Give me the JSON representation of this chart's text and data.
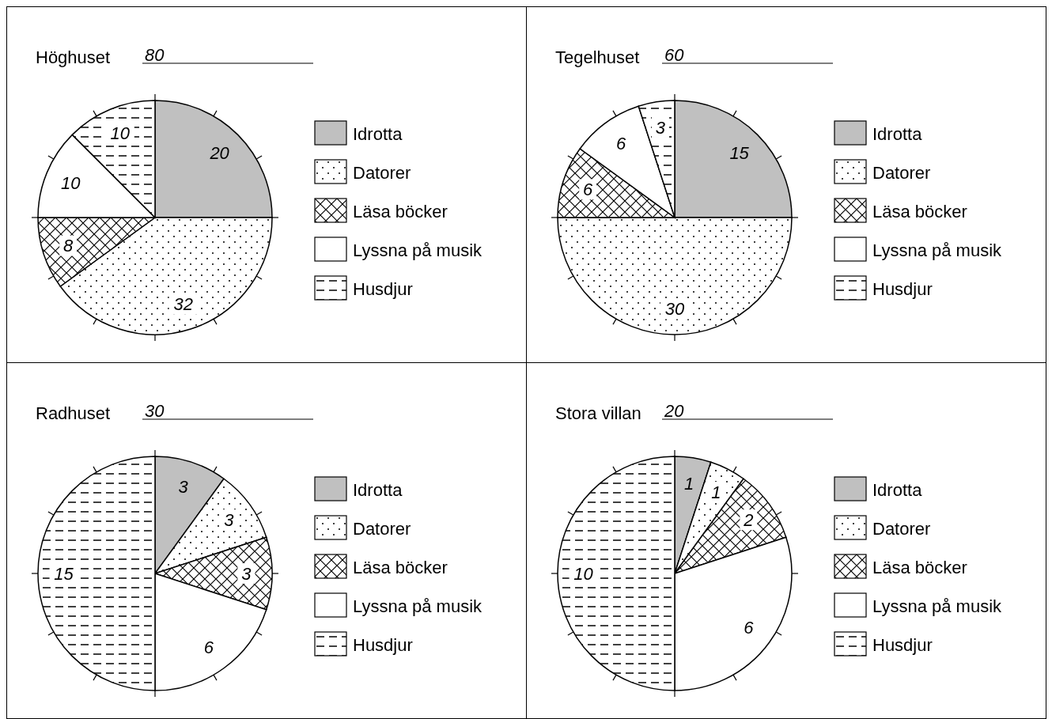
{
  "chart_data": [
    {
      "type": "pie",
      "title": "Höghuset",
      "subtitle": "80",
      "categories": [
        "Idrotta",
        "Datorer",
        "Läsa böcker",
        "Lyssna på musik",
        "Husdjur"
      ],
      "values": [
        20,
        32,
        8,
        10,
        10
      ],
      "colors": [
        "#c0c0c0",
        "#ffffff",
        "#ffffff",
        "#ffffff",
        "#ffffff"
      ],
      "data_labels": true,
      "legend": "right"
    },
    {
      "type": "pie",
      "title": "Tegelhuset",
      "subtitle": "60",
      "categories": [
        "Idrotta",
        "Datorer",
        "Läsa böcker",
        "Lyssna på musik",
        "Husdjur"
      ],
      "values": [
        15,
        30,
        6,
        6,
        3
      ],
      "colors": [
        "#c0c0c0",
        "#ffffff",
        "#ffffff",
        "#ffffff",
        "#ffffff"
      ],
      "data_labels": true,
      "legend": "right"
    },
    {
      "type": "pie",
      "title": "Radhuset",
      "subtitle": "30",
      "categories": [
        "Idrotta",
        "Datorer",
        "Läsa böcker",
        "Lyssna på musik",
        "Husdjur"
      ],
      "values": [
        3,
        3,
        3,
        6,
        15
      ],
      "colors": [
        "#c0c0c0",
        "#ffffff",
        "#ffffff",
        "#ffffff",
        "#ffffff"
      ],
      "data_labels": true,
      "legend": "right"
    },
    {
      "type": "pie",
      "title": "Stora villan",
      "subtitle": "20",
      "categories": [
        "Idrotta",
        "Datorer",
        "Läsa böcker",
        "Lyssna på musik",
        "Husdjur"
      ],
      "values": [
        1,
        1,
        2,
        6,
        10
      ],
      "colors": [
        "#c0c0c0",
        "#ffffff",
        "#ffffff",
        "#ffffff",
        "#ffffff"
      ],
      "data_labels": true,
      "legend": "right"
    }
  ]
}
